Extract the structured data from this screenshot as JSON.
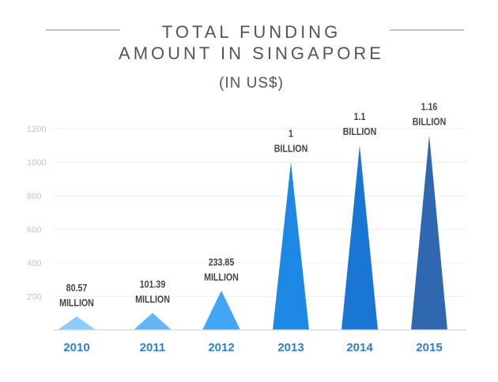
{
  "chart_data": {
    "type": "bar",
    "title_line1": "TOTAL FUNDING",
    "title_line2": "AMOUNT IN SINGAPORE",
    "subtitle": "(IN US$)",
    "categories": [
      "2010",
      "2011",
      "2012",
      "2013",
      "2014",
      "2015"
    ],
    "values": [
      80.57,
      101.39,
      233.85,
      1000,
      1100,
      1160
    ],
    "data_labels": [
      [
        "80.57",
        "MILLION"
      ],
      [
        "101.39",
        "MILLION"
      ],
      [
        "233.85",
        "MILLION"
      ],
      [
        "1",
        "BILLION"
      ],
      [
        "1.1",
        "BILLION"
      ],
      [
        "1.16",
        "BILLION"
      ]
    ],
    "y_ticks": [
      200,
      400,
      600,
      800,
      1000,
      1200
    ],
    "ylim": [
      0,
      1200
    ],
    "grid": true,
    "colors": [
      "#90caf9",
      "#64b5f6",
      "#42a5f5",
      "#1e88e5",
      "#1976d2",
      "#2f67b1"
    ],
    "category_label_color": "#2f7fd0"
  }
}
